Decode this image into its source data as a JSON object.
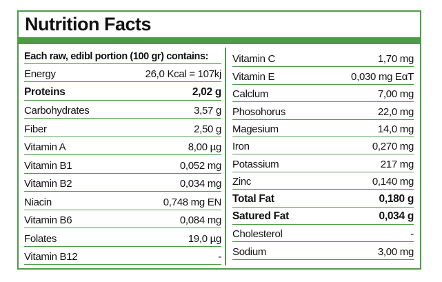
{
  "theme": {
    "green": "#4d9b46",
    "text": "#111111",
    "background": "#ffffff"
  },
  "title": "Nutrition Facts",
  "left_column": {
    "header": "Each raw, edibl portion (100 gr) contains:",
    "rows": [
      {
        "label": "Energy",
        "value": "26,0 Kcal = 107kj",
        "bold": false
      },
      {
        "label": "Proteins",
        "value": "2,02 g",
        "bold": true
      },
      {
        "label": "Carbohydrates",
        "value": "3,57 g",
        "bold": false
      },
      {
        "label": "Fiber",
        "value": "2,50 g",
        "bold": false
      },
      {
        "label": "Vitamin A",
        "value": "8,00 µg",
        "bold": false
      },
      {
        "label": "Vitamin B1",
        "value": "0,052 mg",
        "bold": false
      },
      {
        "label": "Vitamin B2",
        "value": "0,034 mg",
        "bold": false
      },
      {
        "label": "Niacin",
        "value": "0,748 mg EN",
        "bold": false
      },
      {
        "label": "Vitamin B6",
        "value": "0,084 mg",
        "bold": false
      },
      {
        "label": "Folates",
        "value": "19,0 µg",
        "bold": false
      },
      {
        "label": "Vitamin B12",
        "value": "-",
        "bold": false
      }
    ]
  },
  "right_column": {
    "rows": [
      {
        "label": "Vitamin C",
        "value": "1,70 mg",
        "bold": false
      },
      {
        "label": "Vitamin E",
        "value": "0,030 mg EαT",
        "bold": false
      },
      {
        "label": "Calclum",
        "value": "7,00 mg",
        "bold": false
      },
      {
        "label": "Phosohorus",
        "value": "22,0 mg",
        "bold": false
      },
      {
        "label": "Magesium",
        "value": "14,0 mg",
        "bold": false
      },
      {
        "label": "Iron",
        "value": "0,270 mg",
        "bold": false
      },
      {
        "label": "Potassium",
        "value": "217 mg",
        "bold": false
      },
      {
        "label": "Zinc",
        "value": "0,140 mg",
        "bold": false
      },
      {
        "label": "Total Fat",
        "value": "0,180 g",
        "bold": true
      },
      {
        "label": "Satured Fat",
        "value": "0,034 g",
        "bold": true
      },
      {
        "label": "Cholesterol",
        "value": "-",
        "bold": false
      },
      {
        "label": "Sodium",
        "value": "3,00 mg",
        "bold": false
      }
    ]
  }
}
